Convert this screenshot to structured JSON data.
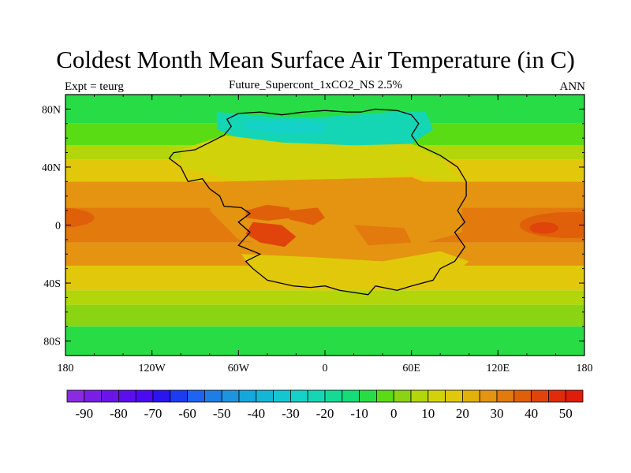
{
  "title": "Coldest Month Mean Surface Air Temperature (in C)",
  "left_label": "Expt = teurg",
  "subtitle": "Future_Supercont_1xCO2_NS 2.5%",
  "right_label": "ANN",
  "map": {
    "lon_range": [
      -180,
      180
    ],
    "lat_range": [
      -90,
      90
    ],
    "lat_ticks": [
      {
        "value": 80,
        "label": "80N"
      },
      {
        "value": 40,
        "label": "40N"
      },
      {
        "value": 0,
        "label": "0"
      },
      {
        "value": -40,
        "label": "40S"
      },
      {
        "value": -80,
        "label": "80S"
      }
    ],
    "lon_ticks": [
      {
        "value": -180,
        "label": "180"
      },
      {
        "value": -120,
        "label": "120W"
      },
      {
        "value": -60,
        "label": "60W"
      },
      {
        "value": 0,
        "label": "0"
      },
      {
        "value": 60,
        "label": "60E"
      },
      {
        "value": 120,
        "label": "120E"
      },
      {
        "value": 180,
        "label": "180"
      }
    ],
    "ocean_bands": [
      {
        "lat_top": 90,
        "lat_bottom": 70,
        "level": -10
      },
      {
        "lat_top": 70,
        "lat_bottom": 55,
        "level": -5
      },
      {
        "lat_top": 55,
        "lat_bottom": 45,
        "level": 5
      },
      {
        "lat_top": 45,
        "lat_bottom": 30,
        "level": 15
      },
      {
        "lat_top": 30,
        "lat_bottom": 12,
        "level": 25
      },
      {
        "lat_top": 12,
        "lat_bottom": -12,
        "level": 30
      },
      {
        "lat_top": -12,
        "lat_bottom": -28,
        "level": 25
      },
      {
        "lat_top": -28,
        "lat_bottom": -45,
        "level": 15
      },
      {
        "lat_top": -45,
        "lat_bottom": -55,
        "level": 5
      },
      {
        "lat_top": -55,
        "lat_bottom": -70,
        "level": 0
      },
      {
        "lat_top": -70,
        "lat_bottom": -90,
        "level": -10
      }
    ],
    "warm_pools": [
      {
        "lon": -185,
        "lat": 5,
        "rlon": 25,
        "rlat": 7,
        "level": 35
      },
      {
        "lon": 170,
        "lat": 0,
        "rlon": 35,
        "rlat": 9,
        "level": 35
      },
      {
        "lon": 152,
        "lat": -2,
        "rlon": 10,
        "rlat": 4,
        "level": 40
      }
    ],
    "land_regions": [
      {
        "points": [
          [
            -75,
            78
          ],
          [
            -40,
            75
          ],
          [
            -10,
            74
          ],
          [
            20,
            76
          ],
          [
            45,
            78
          ],
          [
            70,
            78
          ],
          [
            75,
            66
          ],
          [
            60,
            56
          ],
          [
            30,
            54
          ],
          [
            0,
            55
          ],
          [
            -30,
            57
          ],
          [
            -60,
            60
          ],
          [
            -75,
            66
          ]
        ],
        "level": -25
      },
      {
        "points": [
          [
            -55,
            72
          ],
          [
            -20,
            72
          ],
          [
            0,
            70
          ],
          [
            0,
            64
          ],
          [
            -30,
            63
          ],
          [
            -55,
            66
          ]
        ],
        "level": -30
      },
      {
        "points": [
          [
            -100,
            52
          ],
          [
            -70,
            62
          ],
          [
            -30,
            57
          ],
          [
            20,
            55
          ],
          [
            60,
            56
          ],
          [
            82,
            45
          ],
          [
            95,
            30
          ],
          [
            60,
            35
          ],
          [
            0,
            30
          ],
          [
            -60,
            30
          ],
          [
            -100,
            40
          ]
        ],
        "level": 10
      },
      {
        "points": [
          [
            -70,
            30
          ],
          [
            60,
            33
          ],
          [
            95,
            20
          ],
          [
            95,
            -5
          ],
          [
            60,
            -15
          ],
          [
            0,
            -20
          ],
          [
            -60,
            -10
          ],
          [
            -80,
            10
          ]
        ],
        "level": 28
      },
      {
        "points": [
          [
            -55,
            10
          ],
          [
            -40,
            14
          ],
          [
            -25,
            12
          ],
          [
            -22,
            5
          ],
          [
            -40,
            3
          ],
          [
            -55,
            5
          ]
        ],
        "level": 38
      },
      {
        "points": [
          [
            -50,
            2
          ],
          [
            -30,
            0
          ],
          [
            -20,
            -8
          ],
          [
            -28,
            -15
          ],
          [
            -45,
            -12
          ],
          [
            -55,
            -6
          ]
        ],
        "level": 40
      },
      {
        "points": [
          [
            -25,
            10
          ],
          [
            -5,
            12
          ],
          [
            0,
            5
          ],
          [
            -8,
            0
          ],
          [
            -25,
            4
          ]
        ],
        "level": 38
      },
      {
        "points": [
          [
            -58,
            -20
          ],
          [
            -10,
            -22
          ],
          [
            40,
            -25
          ],
          [
            80,
            -18
          ],
          [
            100,
            -25
          ],
          [
            80,
            -40
          ],
          [
            40,
            -45
          ],
          [
            -10,
            -45
          ],
          [
            -50,
            -32
          ]
        ],
        "level": 18
      },
      {
        "points": [
          [
            20,
            0
          ],
          [
            55,
            -2
          ],
          [
            60,
            -12
          ],
          [
            30,
            -14
          ]
        ],
        "level": 33
      }
    ],
    "coastline": [
      [
        -105,
        50
      ],
      [
        -90,
        52
      ],
      [
        -80,
        57
      ],
      [
        -70,
        62
      ],
      [
        -65,
        68
      ],
      [
        -68,
        73
      ],
      [
        -60,
        77
      ],
      [
        -45,
        78
      ],
      [
        -30,
        76
      ],
      [
        -15,
        78
      ],
      [
        0,
        79
      ],
      [
        15,
        78
      ],
      [
        25,
        78
      ],
      [
        35,
        80
      ],
      [
        50,
        79
      ],
      [
        60,
        76
      ],
      [
        65,
        70
      ],
      [
        60,
        62
      ],
      [
        65,
        55
      ],
      [
        80,
        48
      ],
      [
        92,
        40
      ],
      [
        98,
        30
      ],
      [
        98,
        20
      ],
      [
        92,
        10
      ],
      [
        97,
        2
      ],
      [
        90,
        -5
      ],
      [
        97,
        -15
      ],
      [
        90,
        -25
      ],
      [
        80,
        -30
      ],
      [
        75,
        -38
      ],
      [
        60,
        -42
      ],
      [
        50,
        -45
      ],
      [
        35,
        -42
      ],
      [
        30,
        -48
      ],
      [
        10,
        -45
      ],
      [
        0,
        -42
      ],
      [
        -10,
        -43
      ],
      [
        -22,
        -42
      ],
      [
        -40,
        -38
      ],
      [
        -50,
        -30
      ],
      [
        -55,
        -25
      ],
      [
        -45,
        -20
      ],
      [
        -60,
        -14
      ],
      [
        -52,
        -5
      ],
      [
        -60,
        2
      ],
      [
        -52,
        8
      ],
      [
        -58,
        12
      ],
      [
        -70,
        13
      ],
      [
        -73,
        20
      ],
      [
        -80,
        25
      ],
      [
        -85,
        32
      ],
      [
        -95,
        30
      ],
      [
        -100,
        40
      ],
      [
        -108,
        46
      ],
      [
        -105,
        50
      ]
    ],
    "colorbar": {
      "levels": [
        -90,
        -85,
        -80,
        -75,
        -70,
        -65,
        -60,
        -55,
        -50,
        -45,
        -40,
        -35,
        -30,
        -25,
        -20,
        -15,
        -10,
        -5,
        0,
        5,
        10,
        15,
        20,
        25,
        30,
        35,
        40,
        45,
        50
      ],
      "colors": [
        "#8a2be2",
        "#7a1ee6",
        "#6b14ea",
        "#5c0eee",
        "#4b0af2",
        "#2a14f0",
        "#1c3cf4",
        "#1e64f0",
        "#1e7ee6",
        "#1e94e0",
        "#14a6dc",
        "#14b6d6",
        "#14c6d2",
        "#14d2c8",
        "#14d6b4",
        "#14da96",
        "#14dc78",
        "#28dc46",
        "#5adc14",
        "#8ad414",
        "#b2d60a",
        "#d2d20a",
        "#e2c80a",
        "#e4b00a",
        "#e49410",
        "#e27a0e",
        "#e0600a",
        "#e0440a",
        "#e02c0a",
        "#e01c0a"
      ],
      "labels": [
        {
          "value": -90,
          "label": "-90"
        },
        {
          "value": -80,
          "label": "-80"
        },
        {
          "value": -70,
          "label": "-70"
        },
        {
          "value": -60,
          "label": "-60"
        },
        {
          "value": -50,
          "label": "-50"
        },
        {
          "value": -40,
          "label": "-40"
        },
        {
          "value": -30,
          "label": "-30"
        },
        {
          "value": -20,
          "label": "-20"
        },
        {
          "value": -10,
          "label": "-10"
        },
        {
          "value": 0,
          "label": "0"
        },
        {
          "value": 10,
          "label": "10"
        },
        {
          "value": 20,
          "label": "20"
        },
        {
          "value": 30,
          "label": "30"
        },
        {
          "value": 40,
          "label": "40"
        },
        {
          "value": 50,
          "label": "50"
        }
      ]
    }
  }
}
